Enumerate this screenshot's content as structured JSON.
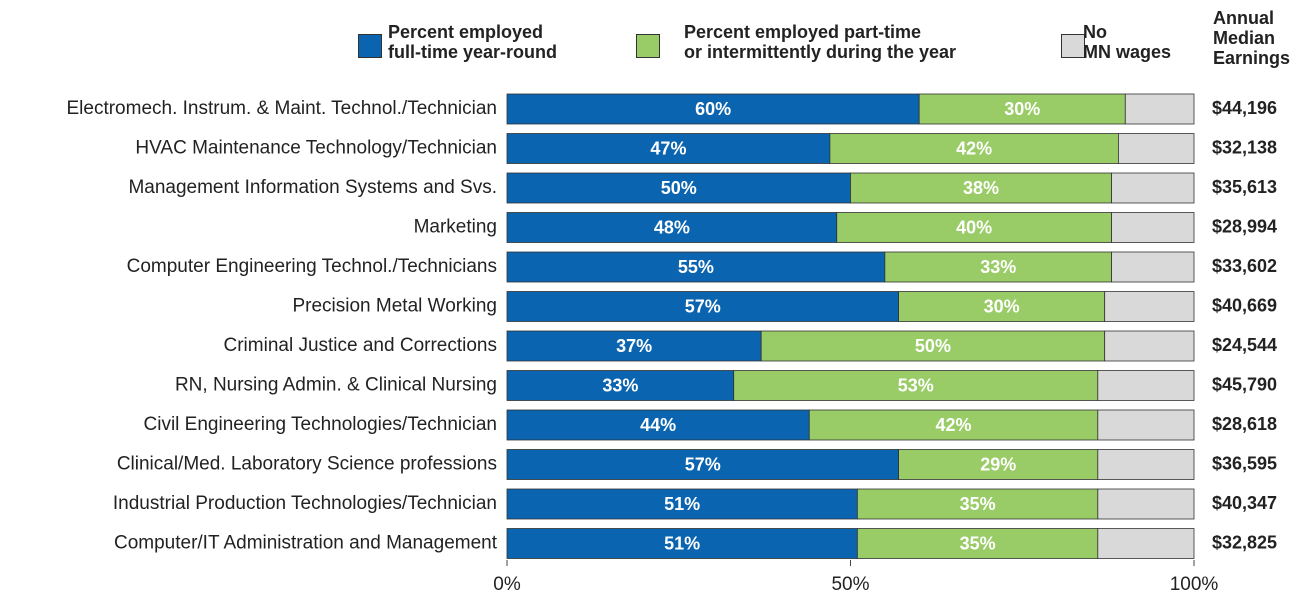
{
  "chart_data": {
    "type": "stacked-bar-horizontal",
    "categories": [
      "Electromech. Instrum. & Maint. Technol./Technician",
      "HVAC Maintenance Technology/Technician",
      "Management Information Systems and Svs.",
      "Marketing",
      "Computer Engineering Technol./Technicians",
      "Precision Metal Working",
      "Criminal Justice and Corrections",
      "RN, Nursing Admin. & Clinical Nursing",
      "Civil Engineering Technologies/Technician",
      "Clinical/Med. Laboratory Science professions",
      "Industrial Production Technologies/Technician",
      "Computer/IT Administration and Management"
    ],
    "series": [
      {
        "name": "Percent employed\nfull-time year-round",
        "color": "#0b64b0",
        "values": [
          60,
          47,
          50,
          48,
          55,
          57,
          37,
          33,
          44,
          57,
          51,
          51
        ],
        "value_labels": [
          "60%",
          "47%",
          "50%",
          "48%",
          "55%",
          "57%",
          "37%",
          "33%",
          "44%",
          "57%",
          "51%",
          "51%"
        ]
      },
      {
        "name": "Percent employed part-time\nor intermittently during the year",
        "color": "#99cc66",
        "values": [
          30,
          42,
          38,
          40,
          33,
          30,
          50,
          53,
          42,
          29,
          35,
          35
        ],
        "value_labels": [
          "30%",
          "42%",
          "38%",
          "40%",
          "33%",
          "30%",
          "50%",
          "53%",
          "42%",
          "29%",
          "35%",
          "35%"
        ]
      },
      {
        "name": "No\nMN wages",
        "color": "#d9d9d9",
        "values": [
          10,
          11,
          12,
          12,
          12,
          13,
          13,
          14,
          14,
          14,
          14,
          14
        ]
      }
    ],
    "earnings_title": "Annual\nMedian\nEarnings",
    "earnings": [
      "$44,196",
      "$32,138",
      "$35,613",
      "$28,994",
      "$33,602",
      "$40,669",
      "$24,544",
      "$45,790",
      "$28,618",
      "$36,595",
      "$40,347",
      "$32,825"
    ],
    "xlim": [
      0,
      100
    ],
    "xticks": [
      {
        "value": 0,
        "label": "0%"
      },
      {
        "value": 50,
        "label": "50%"
      },
      {
        "value": 100,
        "label": "100%"
      }
    ]
  }
}
